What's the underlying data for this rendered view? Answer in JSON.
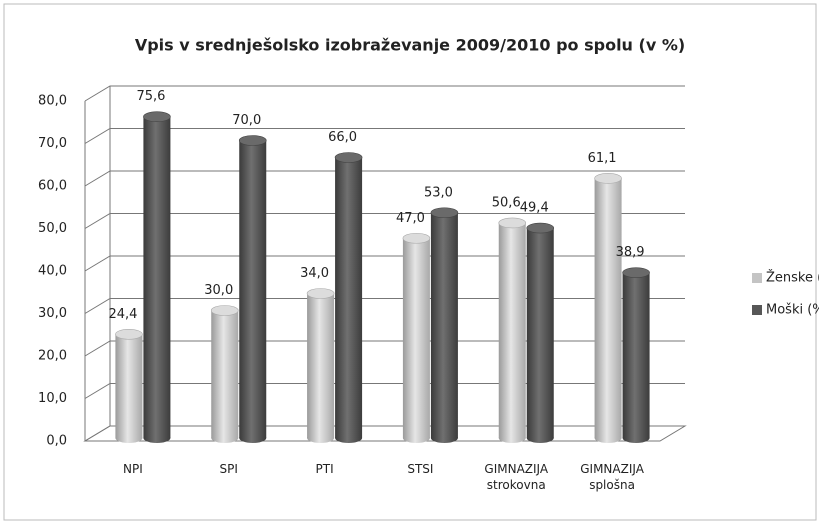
{
  "chart_data": {
    "type": "bar",
    "title": "Vpis v srednješolsko izobraževanje 2009/2010 po spolu (v %)",
    "categories": [
      "NPI",
      "SPI",
      "PTI",
      "STSI",
      "GIMNAZIJA strokovna",
      "GIMNAZIJA splošna"
    ],
    "series": [
      {
        "name": "Ženske (%)",
        "color": "#c4c4c4",
        "values": [
          24.4,
          30.0,
          34.0,
          47.0,
          50.6,
          61.1
        ],
        "value_labels": [
          "24,4",
          "30,0",
          "34,0",
          "47,0",
          "50,6",
          "61,1"
        ]
      },
      {
        "name": "Moški (%)",
        "color": "#575757",
        "values": [
          75.6,
          70.0,
          66.0,
          53.0,
          49.4,
          38.9
        ],
        "value_labels": [
          "75,6",
          "70,0",
          "66,0",
          "53,0",
          "49,4",
          "38,9"
        ]
      }
    ],
    "ylim": [
      0,
      80
    ],
    "yticks": [
      {
        "value": 0,
        "label": "0,0"
      },
      {
        "value": 10,
        "label": "10,0"
      },
      {
        "value": 20,
        "label": "20,0"
      },
      {
        "value": 30,
        "label": "30,0"
      },
      {
        "value": 40,
        "label": "40,0"
      },
      {
        "value": 50,
        "label": "50,0"
      },
      {
        "value": 60,
        "label": "60,0"
      },
      {
        "value": 70,
        "label": "70,0"
      },
      {
        "value": 80,
        "label": "80,0"
      }
    ],
    "grid": true,
    "legend": "right"
  }
}
